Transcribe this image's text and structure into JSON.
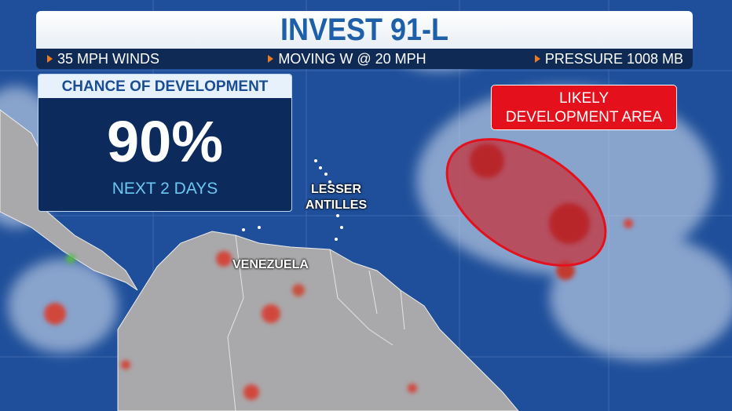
{
  "header": {
    "title": "INVEST 91-L",
    "stats": [
      "35 MPH WINDS",
      "MOVING W @ 20 MPH",
      "PRESSURE 1008 MB"
    ]
  },
  "chance_box": {
    "heading": "CHANCE OF DEVELOPMENT",
    "value": "90%",
    "period": "NEXT 2 DAYS"
  },
  "development_label": {
    "line1": "LIKELY",
    "line2": "DEVELOPMENT AREA"
  },
  "map_labels": {
    "lesser_antilles_1": "LESSER",
    "lesser_antilles_2": "ANTILLES",
    "venezuela": "VENEZUELA"
  },
  "colors": {
    "ocean": "#1f4f9a",
    "land": "#a9a9ab",
    "title_text": "#1d5fa8",
    "stats_bar": "#0f2a55",
    "accent_arrow": "#f07a22",
    "alert_red": "#e4101c",
    "chance_subtext": "#6cc8f0"
  }
}
